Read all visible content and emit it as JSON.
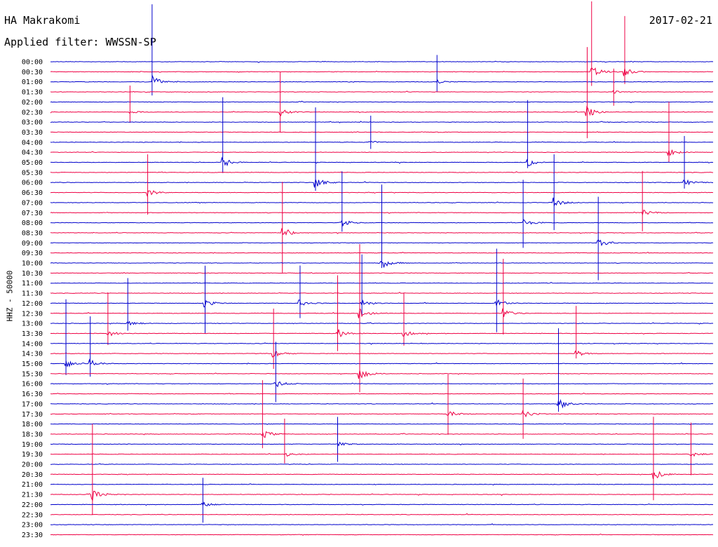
{
  "header": {
    "station": "HA Makrakomi",
    "filter": "Applied filter: WWSSN-SP",
    "date": "2017-02-21"
  },
  "chart_data": {
    "type": "line",
    "title": "HA Makrakomi",
    "subtitle": "Applied filter: WWSSN-SP",
    "ylabel": "HHZ - 50000",
    "xlabel": "",
    "row_labels": [
      "00:00",
      "00:30",
      "01:00",
      "01:30",
      "02:00",
      "02:30",
      "03:00",
      "03:30",
      "04:00",
      "04:30",
      "05:00",
      "05:30",
      "06:00",
      "06:30",
      "07:00",
      "07:30",
      "08:00",
      "08:30",
      "09:00",
      "09:30",
      "10:00",
      "10:30",
      "11:00",
      "11:30",
      "12:00",
      "12:30",
      "13:00",
      "13:30",
      "14:00",
      "14:30",
      "15:00",
      "15:30",
      "16:00",
      "16:30",
      "17:00",
      "17:30",
      "18:00",
      "18:30",
      "19:00",
      "19:30",
      "20:00",
      "20:30",
      "21:00",
      "21:30",
      "22:00",
      "22:30",
      "23:00",
      "23:30"
    ],
    "row_duration_minutes": 30,
    "colors": [
      "#0000cc",
      "#ee0044"
    ],
    "events": [
      {
        "row": 1,
        "minute": 24.5,
        "amplitude": 1.0
      },
      {
        "row": 1,
        "minute": 26.0,
        "amplitude": 0.7
      },
      {
        "row": 2,
        "minute": 4.6,
        "amplitude": 1.0
      },
      {
        "row": 2,
        "minute": 17.5,
        "amplitude": 0.3
      },
      {
        "row": 3,
        "minute": 25.5,
        "amplitude": 0.3
      },
      {
        "row": 5,
        "minute": 3.6,
        "amplitude": 0.3
      },
      {
        "row": 5,
        "minute": 10.4,
        "amplitude": 0.6
      },
      {
        "row": 5,
        "minute": 24.3,
        "amplitude": 1.0
      },
      {
        "row": 8,
        "minute": 14.5,
        "amplitude": 0.25
      },
      {
        "row": 9,
        "minute": 28.0,
        "amplitude": 0.6
      },
      {
        "row": 10,
        "minute": 7.8,
        "amplitude": 0.8
      },
      {
        "row": 10,
        "minute": 21.6,
        "amplitude": 0.7
      },
      {
        "row": 12,
        "minute": 12.0,
        "amplitude": 0.9
      },
      {
        "row": 12,
        "minute": 28.7,
        "amplitude": 0.5
      },
      {
        "row": 13,
        "minute": 4.4,
        "amplitude": 0.6
      },
      {
        "row": 14,
        "minute": 22.8,
        "amplitude": 0.8
      },
      {
        "row": 15,
        "minute": 26.8,
        "amplitude": 0.6
      },
      {
        "row": 16,
        "minute": 13.2,
        "amplitude": 0.6
      },
      {
        "row": 16,
        "minute": 21.4,
        "amplitude": 0.7
      },
      {
        "row": 17,
        "minute": 10.5,
        "amplitude": 1.0
      },
      {
        "row": 18,
        "minute": 24.8,
        "amplitude": 0.9
      },
      {
        "row": 20,
        "minute": 15.0,
        "amplitude": 0.9
      },
      {
        "row": 24,
        "minute": 7.0,
        "amplitude": 0.7
      },
      {
        "row": 24,
        "minute": 11.3,
        "amplitude": 0.5
      },
      {
        "row": 24,
        "minute": 14.1,
        "amplitude": 0.6
      },
      {
        "row": 24,
        "minute": 20.2,
        "amplitude": 0.9
      },
      {
        "row": 25,
        "minute": 14.0,
        "amplitude": 1.0
      },
      {
        "row": 25,
        "minute": 20.5,
        "amplitude": 0.8
      },
      {
        "row": 26,
        "minute": 3.5,
        "amplitude": 0.5
      },
      {
        "row": 27,
        "minute": 2.6,
        "amplitude": 0.5
      },
      {
        "row": 27,
        "minute": 13.0,
        "amplitude": 0.8
      },
      {
        "row": 27,
        "minute": 16.0,
        "amplitude": 0.5
      },
      {
        "row": 29,
        "minute": 10.1,
        "amplitude": 0.6
      },
      {
        "row": 29,
        "minute": 23.8,
        "amplitude": 0.5
      },
      {
        "row": 30,
        "minute": 0.7,
        "amplitude": 0.8
      },
      {
        "row": 30,
        "minute": 1.8,
        "amplitude": 0.6
      },
      {
        "row": 31,
        "minute": 14.0,
        "amplitude": 1.0
      },
      {
        "row": 32,
        "minute": 10.2,
        "amplitude": 0.6
      },
      {
        "row": 34,
        "minute": 23.0,
        "amplitude": 0.9
      },
      {
        "row": 35,
        "minute": 18.0,
        "amplitude": 0.6
      },
      {
        "row": 35,
        "minute": 21.4,
        "amplitude": 0.6
      },
      {
        "row": 37,
        "minute": 9.6,
        "amplitude": 0.7
      },
      {
        "row": 38,
        "minute": 13.0,
        "amplitude": 0.4
      },
      {
        "row": 39,
        "minute": 10.6,
        "amplitude": 0.4
      },
      {
        "row": 39,
        "minute": 29.0,
        "amplitude": 0.5
      },
      {
        "row": 41,
        "minute": 27.3,
        "amplitude": 0.9
      },
      {
        "row": 43,
        "minute": 1.9,
        "amplitude": 1.0
      },
      {
        "row": 44,
        "minute": 6.9,
        "amplitude": 0.4
      }
    ],
    "noise_level": 0.3,
    "grid": false,
    "legend": "none"
  }
}
